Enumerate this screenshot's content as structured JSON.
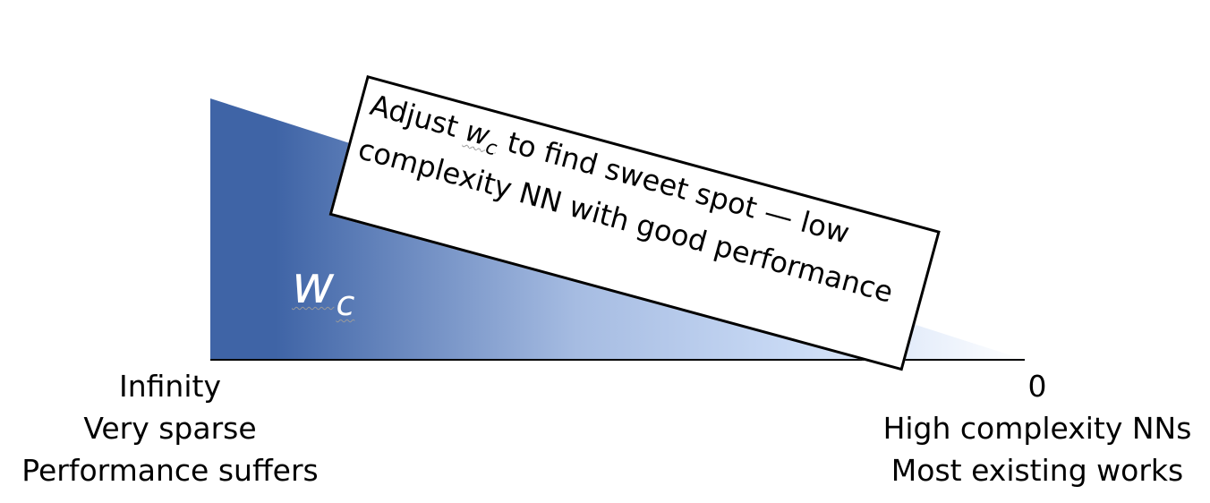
{
  "wedge": {
    "symbol": "w",
    "subscript": "c",
    "colors": {
      "dark": "#3f64a6",
      "mid": "#a6bce2",
      "light": "#c9daf5",
      "end": "#ffffff"
    }
  },
  "callout": {
    "line1_prefix": "Adjust ",
    "symbol": "w",
    "subscript": "c",
    "line1_suffix": " to find sweet spot — low",
    "line2": "complexity NN with good performance"
  },
  "left_end": {
    "value": "Infinity",
    "line2": "Very sparse",
    "line3": "Performance suffers"
  },
  "right_end": {
    "value": "0",
    "line2": "High complexity NNs",
    "line3": "Most existing works"
  }
}
